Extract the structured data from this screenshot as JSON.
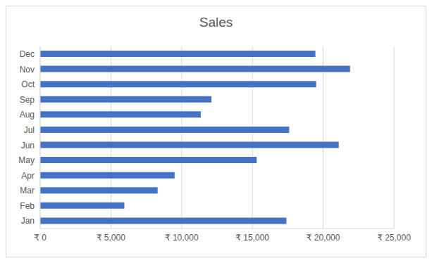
{
  "chart_data": {
    "type": "bar",
    "title": "Sales",
    "orientation": "horizontal",
    "categories": [
      "Jan",
      "Feb",
      "Mar",
      "Apr",
      "May",
      "Jun",
      "Jul",
      "Aug",
      "Sep",
      "Oct",
      "Nov",
      "Dec"
    ],
    "values": [
      17400,
      5950,
      8300,
      9500,
      15300,
      21100,
      17600,
      11350,
      12100,
      19500,
      21900,
      19450
    ],
    "color": "#4472c4",
    "xlim": [
      0,
      25000
    ],
    "xticks": [
      {
        "value": 0,
        "label": "₹ 0"
      },
      {
        "value": 5000,
        "label": "₹ 5,000"
      },
      {
        "value": 10000,
        "label": "₹ 10,000"
      },
      {
        "value": 15000,
        "label": "₹ 15,000"
      },
      {
        "value": 20000,
        "label": "₹ 20,000"
      },
      {
        "value": 25000,
        "label": "₹ 25,000"
      }
    ],
    "grid": true
  }
}
